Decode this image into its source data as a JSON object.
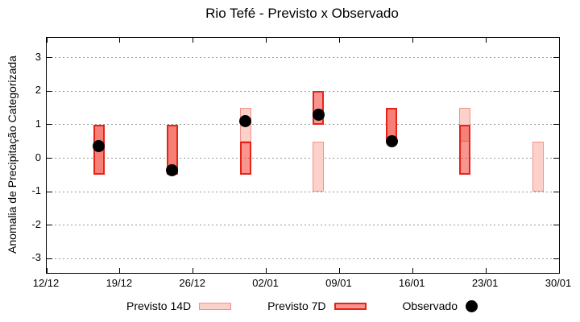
{
  "chart_data": {
    "type": "bar",
    "title": "Rio Tefé - Previsto x Observado",
    "ylabel": "Anomalia de Precipitação Categorizada",
    "xlabel": "",
    "grid": true,
    "legend_position": "bottom",
    "ylim": [
      -3.43,
      3.6
    ],
    "x_days_total": 49,
    "x_ticks": [
      {
        "day": 0,
        "label": "12/12"
      },
      {
        "day": 7,
        "label": "19/12"
      },
      {
        "day": 14,
        "label": "26/12"
      },
      {
        "day": 21,
        "label": "02/01"
      },
      {
        "day": 28,
        "label": "09/01"
      },
      {
        "day": 35,
        "label": "16/01"
      },
      {
        "day": 42,
        "label": "23/01"
      },
      {
        "day": 49,
        "label": "30/01"
      }
    ],
    "y_ticks": [
      {
        "v": 3,
        "label": "3"
      },
      {
        "v": 2,
        "label": "2"
      },
      {
        "v": 1,
        "label": "1"
      },
      {
        "v": 0,
        "label": "0"
      },
      {
        "v": -1,
        "label": "-1"
      },
      {
        "v": -2,
        "label": "-2"
      },
      {
        "v": -3,
        "label": "-3"
      }
    ],
    "series_labels": {
      "p14": "Previsto 14D",
      "p7": "Previsto 7D",
      "obs": "Observado"
    },
    "points": [
      {
        "day": 5,
        "p14": [
          -0.5,
          1.0
        ],
        "p7": [
          -0.5,
          1.0
        ],
        "obs": 0.35
      },
      {
        "day": 12,
        "p14": [
          -0.5,
          1.0
        ],
        "p7": [
          -0.5,
          1.0
        ],
        "obs": -0.35
      },
      {
        "day": 19,
        "p14": [
          0.5,
          1.5
        ],
        "p7": [
          -0.5,
          0.5
        ],
        "obs": 1.1
      },
      {
        "day": 26,
        "p14": [
          -1.0,
          0.5
        ],
        "p7": [
          1.0,
          2.0
        ],
        "obs": 1.3
      },
      {
        "day": 33,
        "p14": [
          0.5,
          1.5
        ],
        "p7": [
          0.5,
          1.5
        ],
        "obs": 0.5
      },
      {
        "day": 40,
        "p14": [
          0.5,
          1.5
        ],
        "p7": [
          -0.5,
          1.0
        ],
        "obs": null
      },
      {
        "day": 47,
        "p14": [
          -1.0,
          0.5
        ],
        "p7": null,
        "obs": null
      }
    ],
    "colors": {
      "p14_fill": "#fbd1ca",
      "p14_border": "#f0948a",
      "p7_fill": "rgba(242,62,50,0.55)",
      "p7_border": "#e62319",
      "obs": "#000000",
      "grid": "#999999",
      "axis": "#000000"
    }
  }
}
